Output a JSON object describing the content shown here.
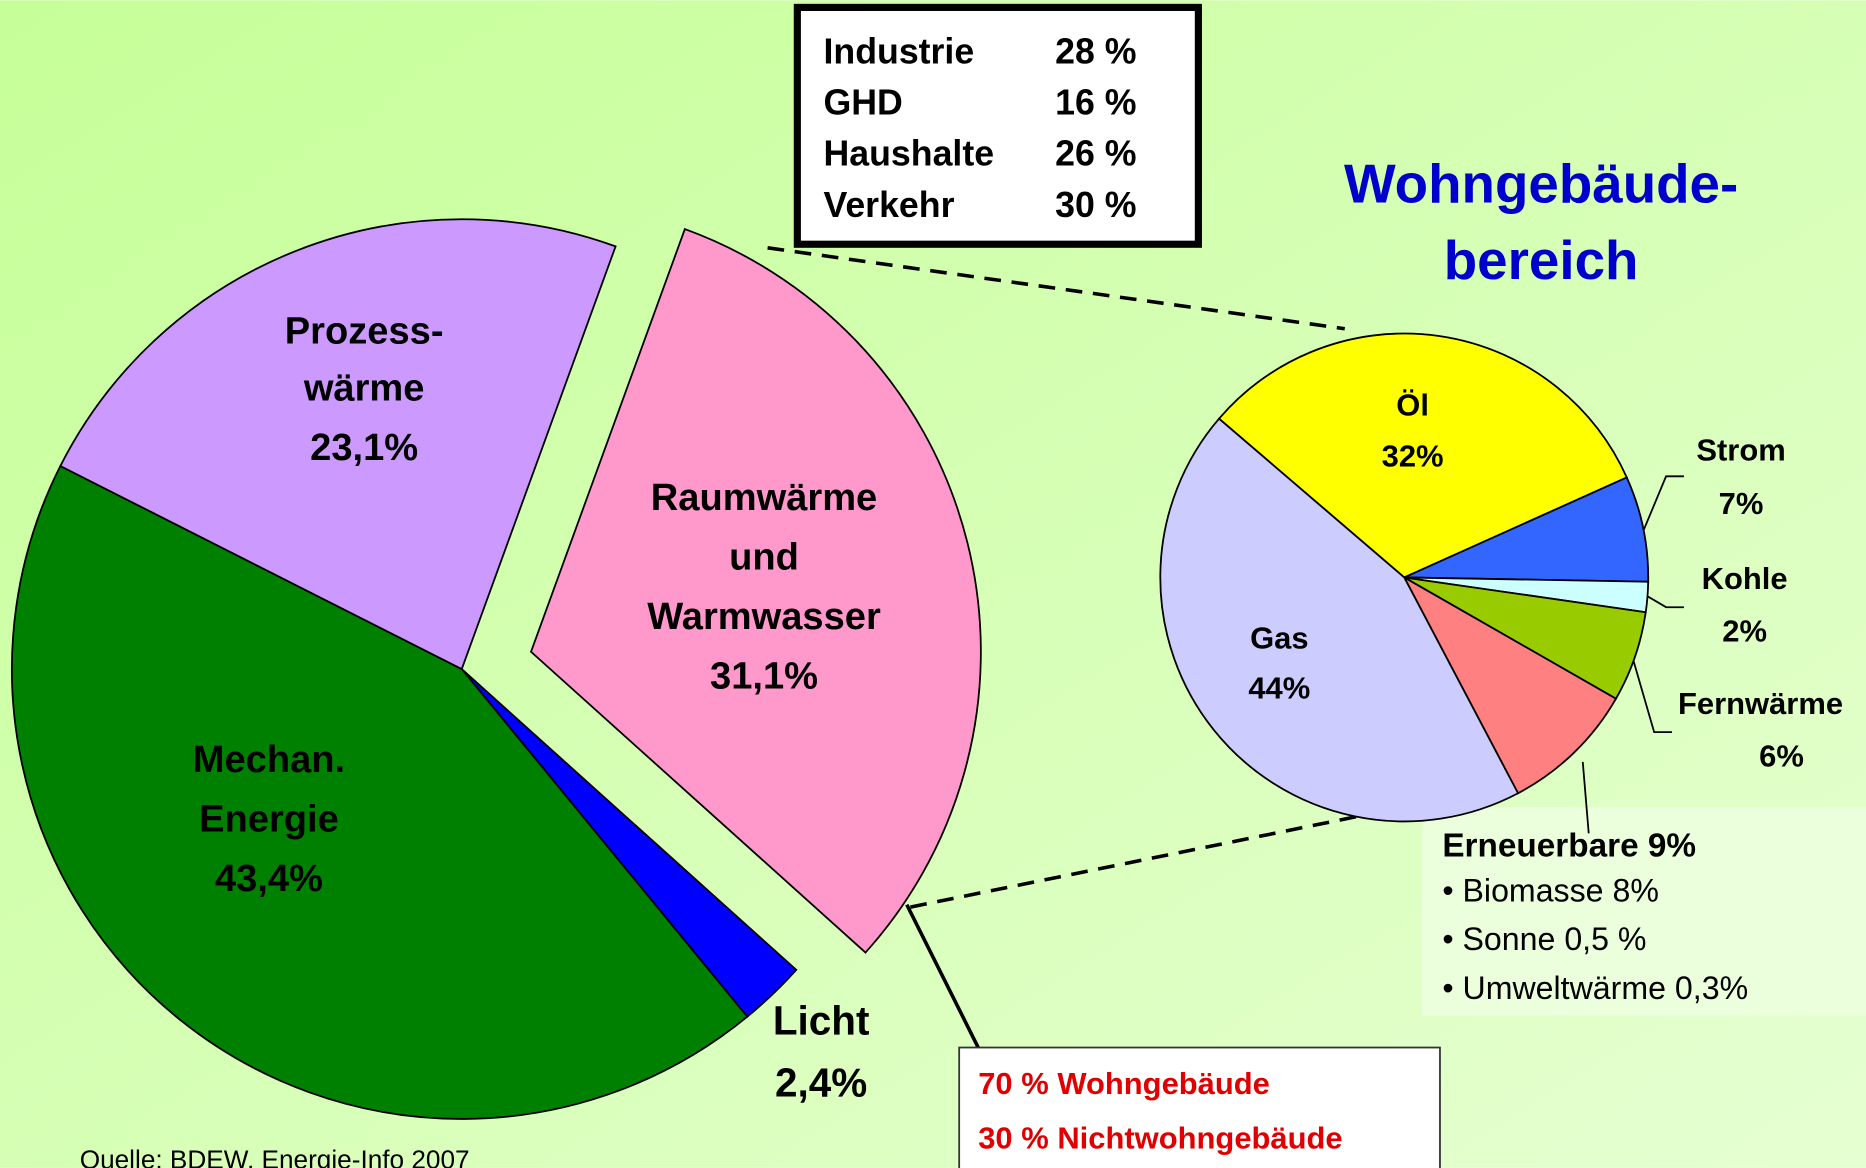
{
  "sector_table": [
    [
      "Industrie",
      "28 %"
    ],
    [
      "GHD",
      "16 %"
    ],
    [
      "Haushalte",
      "26 %"
    ],
    [
      "Verkehr",
      "30 %"
    ]
  ],
  "chart_data": [
    {
      "type": "pie",
      "categories": [
        [
          "Raumwärme",
          "und",
          "Warmwasser"
        ],
        [
          "Licht"
        ],
        [
          "Mechan.",
          "Energie"
        ],
        [
          "Prozess-",
          "wärme"
        ]
      ],
      "values": [
        31.1,
        2.4,
        43.4,
        23.1
      ],
      "value_labels": [
        "31,1%",
        "2,4%",
        "43,4%",
        "23,1%"
      ],
      "colors": [
        "#ff99cc",
        "#0000ff",
        "#008000",
        "#cc99ff"
      ],
      "explode": [
        true,
        false,
        false,
        false
      ]
    },
    {
      "type": "pie",
      "title": [
        "Wohngebäude-",
        "bereich"
      ],
      "categories": [
        [
          "Öl"
        ],
        [
          "Strom"
        ],
        [
          "Kohle"
        ],
        [
          "Fernwärme"
        ],
        [
          "Erneuerbare"
        ],
        [
          "Gas"
        ]
      ],
      "values": [
        32,
        7,
        2,
        6,
        9,
        44
      ],
      "value_labels": [
        "32%",
        "7%",
        "2%",
        "6%",
        "9%",
        "44%"
      ],
      "colors": [
        "#ffff00",
        "#3366ff",
        "#ccffff",
        "#99cc00",
        "#ff8080",
        "#ccccff"
      ],
      "details": [
        "• Biomasse 8%",
        "• Sonne 0,5 %",
        "• Umweltwärme 0,3%"
      ]
    }
  ],
  "residential_box": [
    "70 % Wohngebäude",
    "30 % Nichtwohngebäude"
  ],
  "source": "Quelle: BDEW, Energie-Info 2007"
}
